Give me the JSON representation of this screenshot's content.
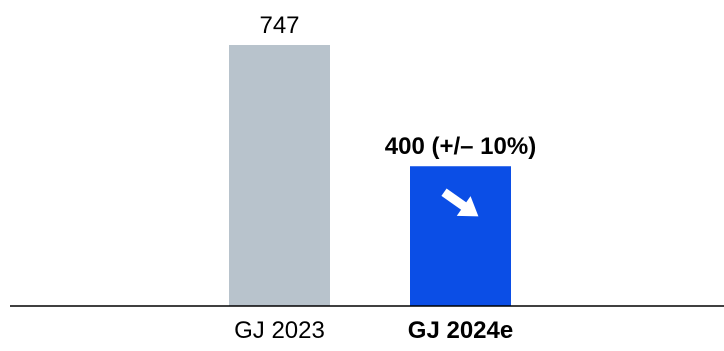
{
  "chart_data": {
    "type": "bar",
    "categories": [
      "GJ 2023",
      "GJ 2024e"
    ],
    "values": [
      747,
      400
    ],
    "data_labels": [
      "747",
      "400 (+/– 10%)"
    ],
    "bar_colors": [
      "#b8c3cc",
      "#0b4ee6"
    ],
    "emphasis": [
      false,
      true
    ],
    "trend_icon": "arrow-down-right-icon",
    "ylim": [
      0,
      747
    ],
    "grid": false,
    "legend": "none",
    "title": "",
    "xlabel": "",
    "ylabel": ""
  }
}
